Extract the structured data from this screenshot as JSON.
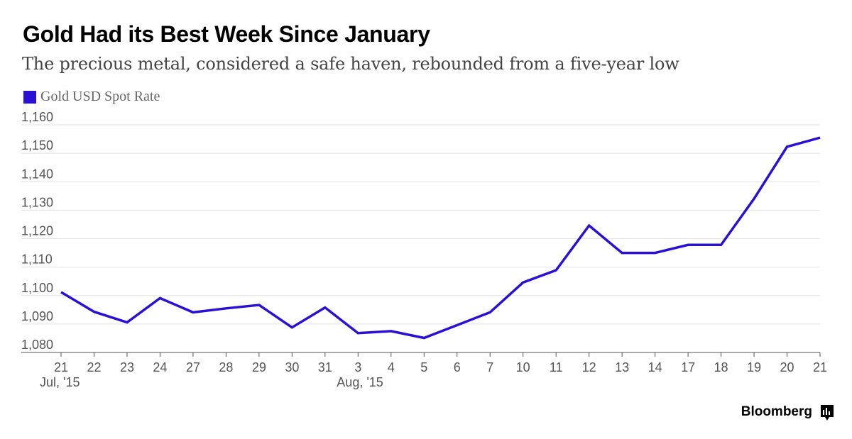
{
  "header": {
    "title": "Gold Had its Best Week Since January",
    "subtitle": "The precious metal, considered a safe haven, rebounded from a five-year low"
  },
  "legend": {
    "label": "Gold USD Spot Rate",
    "color": "#2a0fd6"
  },
  "brand": {
    "name": "Bloomberg",
    "icon": "bloomberg-bars-icon"
  },
  "chart_data": {
    "type": "line",
    "title": "Gold Had its Best Week Since January",
    "subtitle": "The precious metal, considered a safe haven, rebounded from a five-year low",
    "xlabel": "",
    "ylabel": "",
    "ylim": [
      1080,
      1160
    ],
    "yticks": [
      1080,
      1090,
      1100,
      1110,
      1120,
      1130,
      1140,
      1150,
      1160
    ],
    "ytick_labels": [
      "1,080",
      "1,090",
      "1,100",
      "1,110",
      "1,120",
      "1,130",
      "1,140",
      "1,150",
      "1,160"
    ],
    "grid": true,
    "legend_position": "top-left",
    "categories": [
      "21",
      "22",
      "23",
      "24",
      "27",
      "28",
      "29",
      "30",
      "31",
      "3",
      "4",
      "5",
      "6",
      "7",
      "10",
      "11",
      "12",
      "13",
      "14",
      "17",
      "18",
      "19",
      "20",
      "21"
    ],
    "month_labels": [
      {
        "index": 0,
        "label": "Jul, '15"
      },
      {
        "index": 9,
        "label": "Aug, '15"
      }
    ],
    "series": [
      {
        "name": "Gold USD Spot Rate",
        "color": "#2a0fd6",
        "values": [
          1101.2,
          1094.3,
          1090.6,
          1099.1,
          1094.1,
          1095.5,
          1096.7,
          1088.8,
          1095.8,
          1086.8,
          1087.5,
          1085.1,
          1089.6,
          1094.1,
          1104.6,
          1108.9,
          1124.6,
          1115.0,
          1115.0,
          1117.8,
          1117.8,
          1134.0,
          1152.3,
          1155.5
        ]
      }
    ]
  }
}
